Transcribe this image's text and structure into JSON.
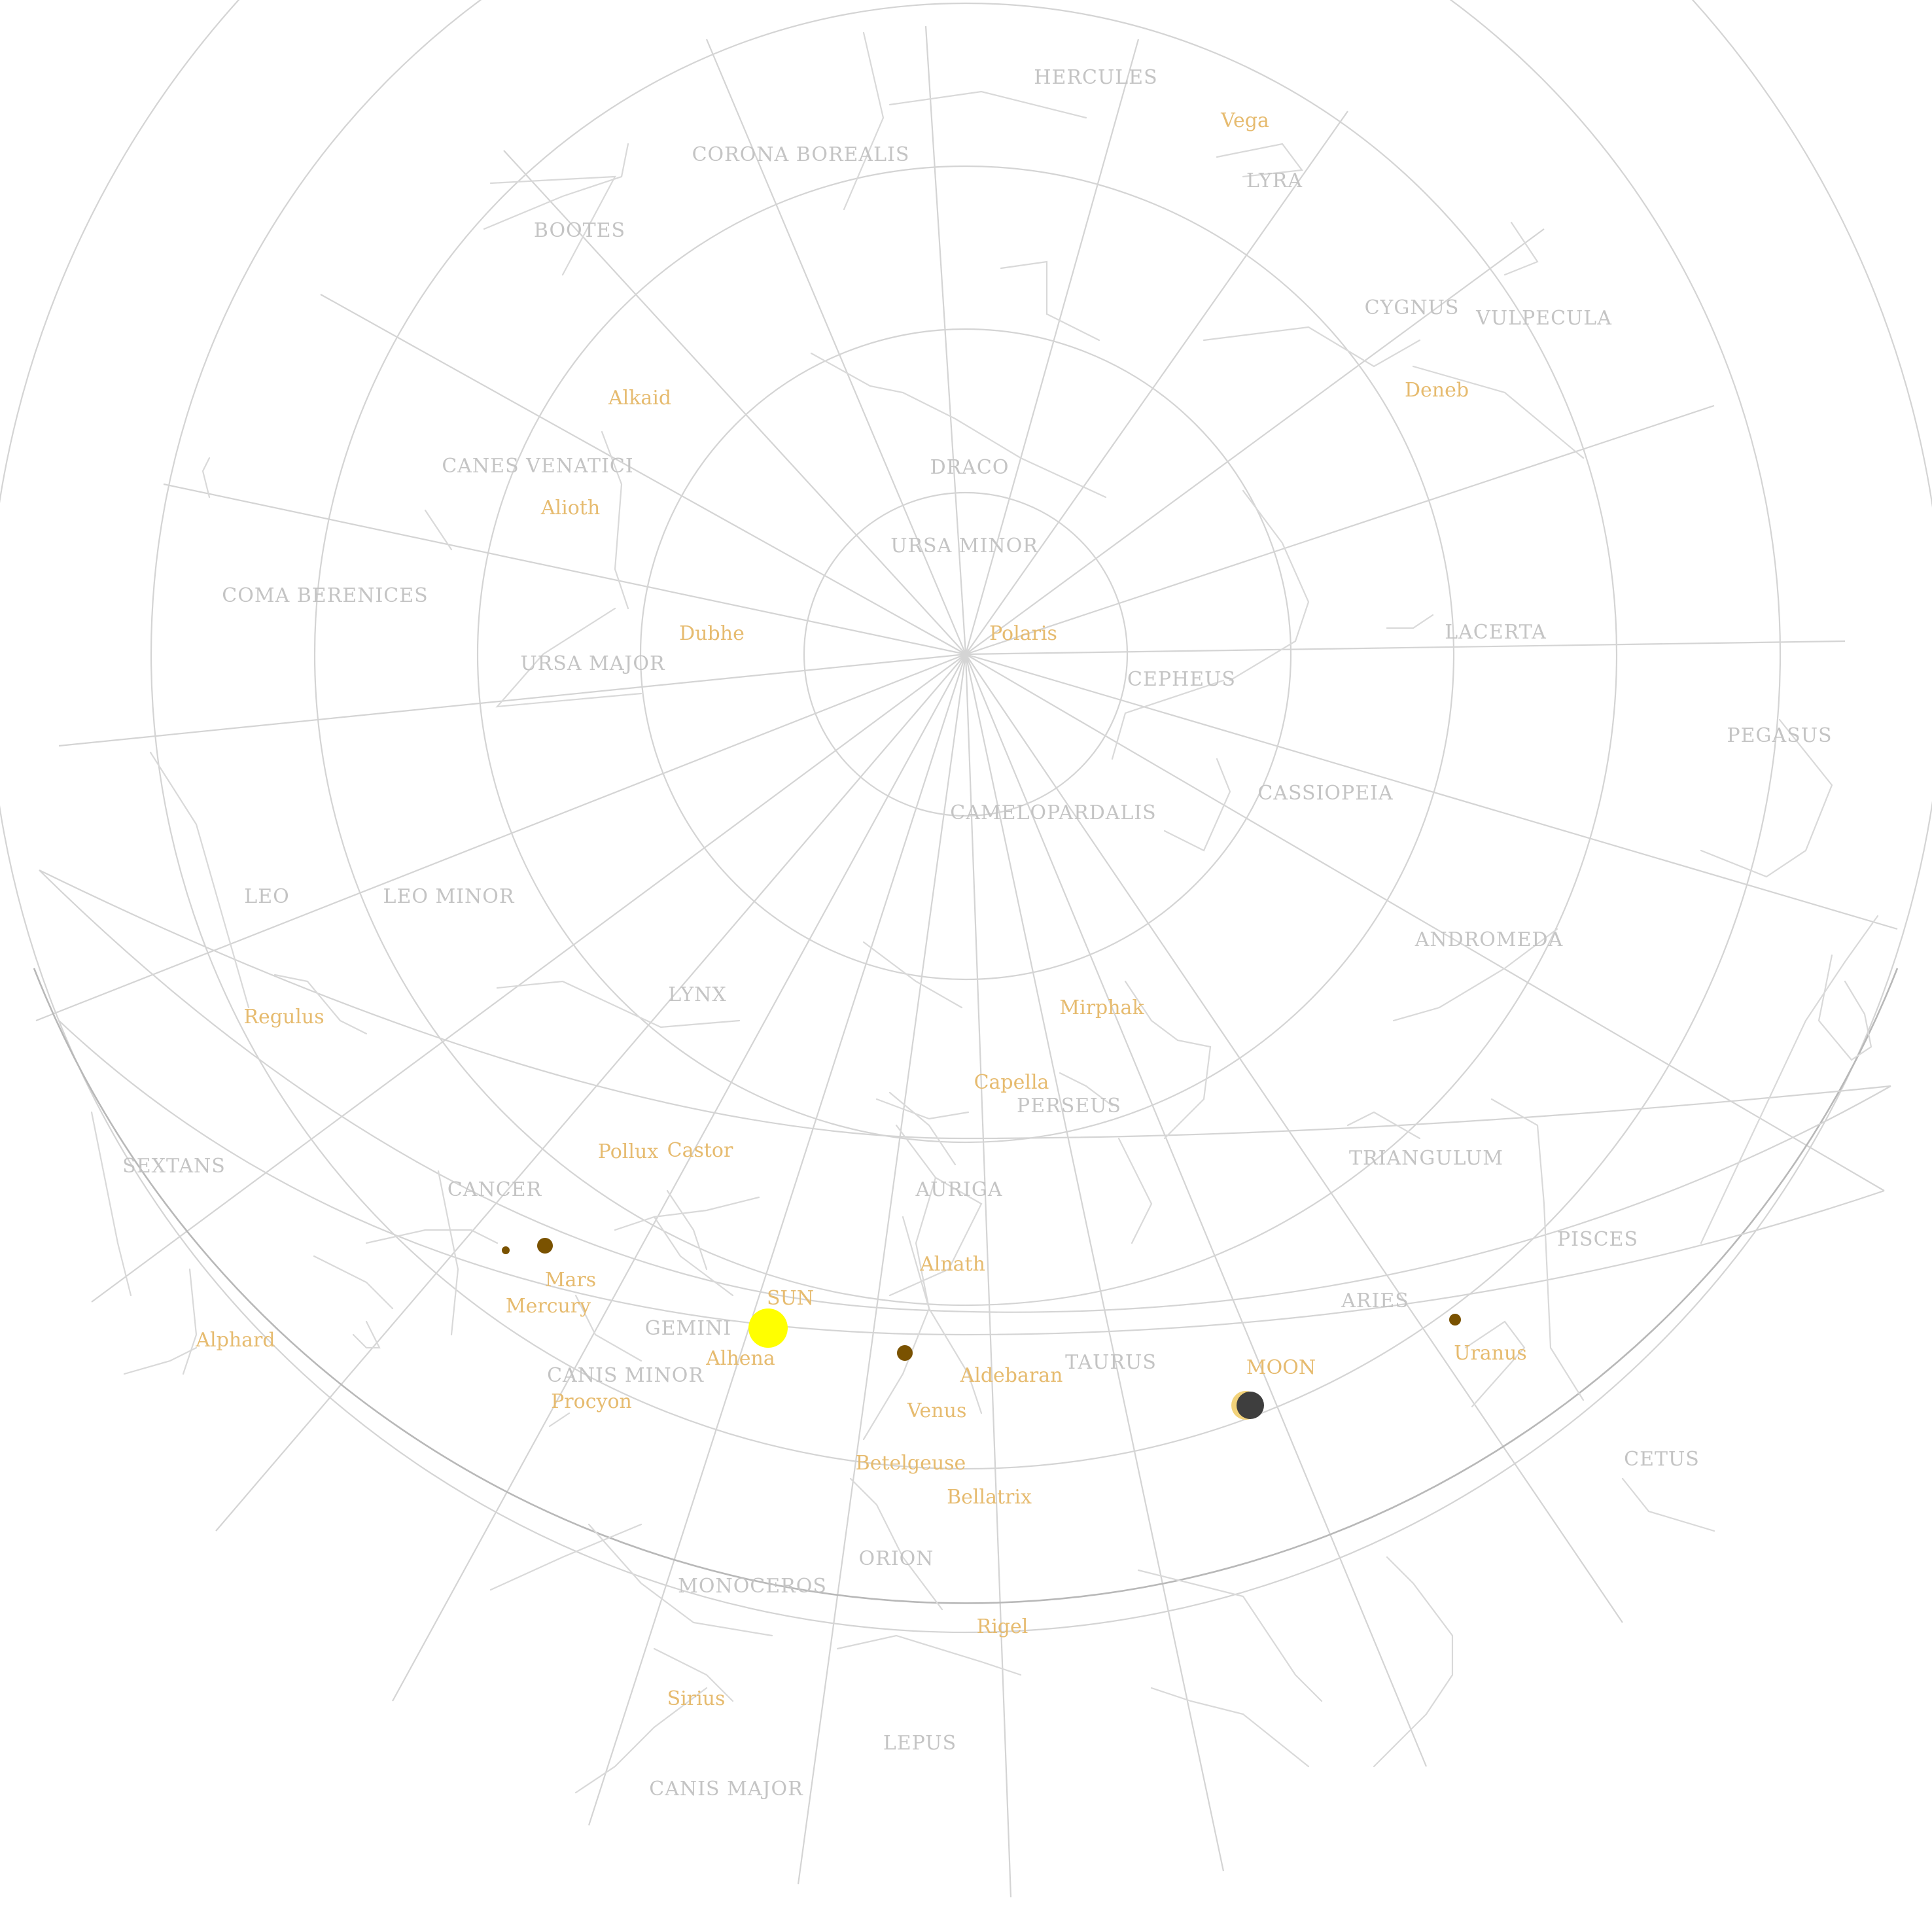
{
  "colors": {
    "background": "#ffffff",
    "grid": "#d4d4d4",
    "horizon": "#b8b8b8",
    "constellation_lines": "#d9d9d9",
    "constellation_labels": "#c4c4c4",
    "star_labels": "#e6bb6f",
    "sun": "#ffff00",
    "planets": "#7a5200",
    "moon_dark": "#3e3e3e",
    "moon_lit": "#f2d27a"
  },
  "constellations": [
    "HERCULES",
    "LYRA",
    "CORONA BOREALIS",
    "BOOTES",
    "CYGNUS",
    "VULPECULA",
    "CANES VENATICI",
    "DRACO",
    "URSA MINOR",
    "COMA BERENICES",
    "URSA MAJOR",
    "LACERTA",
    "CEPHEUS",
    "PEGASUS",
    "CASSIOPEIA",
    "CAMELOPARDALIS",
    "LEO",
    "LEO MINOR",
    "ANDROMEDA",
    "LYNX",
    "PERSEUS",
    "SEXTANS",
    "CANCER",
    "AURIGA",
    "TRIANGULUM",
    "PISCES",
    "ARIES",
    "GEMINI",
    "TAURUS",
    "CANIS MINOR",
    "CETUS",
    "ORION",
    "MONOCEROS",
    "LEPUS",
    "CANIS MAJOR"
  ],
  "stars": [
    "Vega",
    "Deneb",
    "Alkaid",
    "Alioth",
    "Dubhe",
    "Polaris",
    "Mirphak",
    "Regulus",
    "Capella",
    "Pollux",
    "Castor",
    "Alnath",
    "Alphard",
    "Alhena",
    "Aldebaran",
    "Procyon",
    "Betelgeuse",
    "Bellatrix",
    "Rigel",
    "Sirius"
  ],
  "bodies": {
    "sun": "SUN",
    "moon": "MOON",
    "mars": "Mars",
    "mercury": "Mercury",
    "venus": "Venus",
    "uranus": "Uranus"
  }
}
